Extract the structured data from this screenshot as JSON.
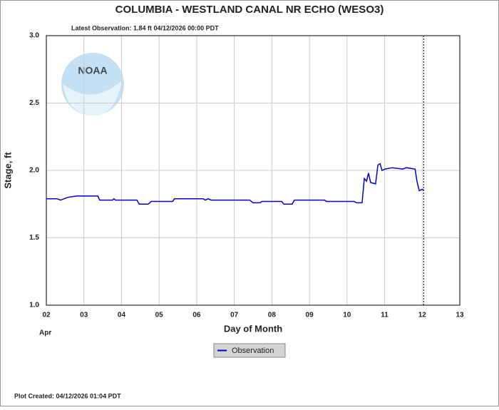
{
  "chart_data": {
    "type": "line",
    "title": "COLUMBIA - WESTLAND CANAL NR ECHO  (WESO3)",
    "subtitle": "Latest Observation: 1.84 ft 04/12/2026 00:00 PDT",
    "x_label": "Day of Month",
    "x_sublabel": "Apr",
    "y_label": "Stage, ft",
    "footer": "Plot Created: 04/12/2026 01:04 PDT",
    "logo_text": "NOAA",
    "x": [
      2.0,
      2.28,
      2.38,
      2.57,
      2.8,
      3.37,
      3.42,
      3.76,
      3.8,
      3.84,
      4.41,
      4.47,
      4.71,
      4.79,
      5.36,
      5.41,
      6.17,
      6.23,
      6.31,
      6.38,
      7.41,
      7.5,
      7.69,
      7.73,
      8.26,
      8.32,
      8.54,
      8.6,
      9.4,
      9.45,
      10.19,
      10.25,
      10.4,
      10.46,
      10.52,
      10.57,
      10.63,
      10.76,
      10.82,
      10.88,
      10.93,
      11.01,
      11.2,
      11.48,
      11.58,
      11.81,
      11.86,
      11.92,
      12.0,
      12.05
    ],
    "series": [
      {
        "name": "Observation",
        "color": "#0000cc",
        "values": [
          1.79,
          1.79,
          1.78,
          1.8,
          1.81,
          1.81,
          1.78,
          1.78,
          1.79,
          1.78,
          1.78,
          1.75,
          1.75,
          1.77,
          1.77,
          1.79,
          1.79,
          1.78,
          1.79,
          1.78,
          1.78,
          1.76,
          1.76,
          1.77,
          1.77,
          1.75,
          1.75,
          1.78,
          1.78,
          1.77,
          1.77,
          1.76,
          1.76,
          1.94,
          1.92,
          1.98,
          1.91,
          1.9,
          2.04,
          2.05,
          2.0,
          2.01,
          2.02,
          2.01,
          2.02,
          2.01,
          1.92,
          1.85,
          1.86,
          1.85
        ]
      }
    ],
    "xlim": [
      2,
      13
    ],
    "xticks": [
      {
        "value": 2,
        "label": "02"
      },
      {
        "value": 3,
        "label": "03"
      },
      {
        "value": 4,
        "label": "04"
      },
      {
        "value": 5,
        "label": "05"
      },
      {
        "value": 6,
        "label": "06"
      },
      {
        "value": 7,
        "label": "07"
      },
      {
        "value": 8,
        "label": "08"
      },
      {
        "value": 9,
        "label": "09"
      },
      {
        "value": 10,
        "label": "10"
      },
      {
        "value": 11,
        "label": "11"
      },
      {
        "value": 12,
        "label": "12"
      },
      {
        "value": 13,
        "label": "13"
      }
    ],
    "ylim": [
      1.0,
      3.0
    ],
    "yticks": [
      {
        "value": 1.0,
        "label": "1.0"
      },
      {
        "value": 1.5,
        "label": "1.5"
      },
      {
        "value": 2.0,
        "label": "2.0"
      },
      {
        "value": 2.5,
        "label": "2.5"
      },
      {
        "value": 3.0,
        "label": "3.0"
      }
    ],
    "grid": true,
    "vline": {
      "x": 12.04,
      "style": "dotted"
    }
  }
}
